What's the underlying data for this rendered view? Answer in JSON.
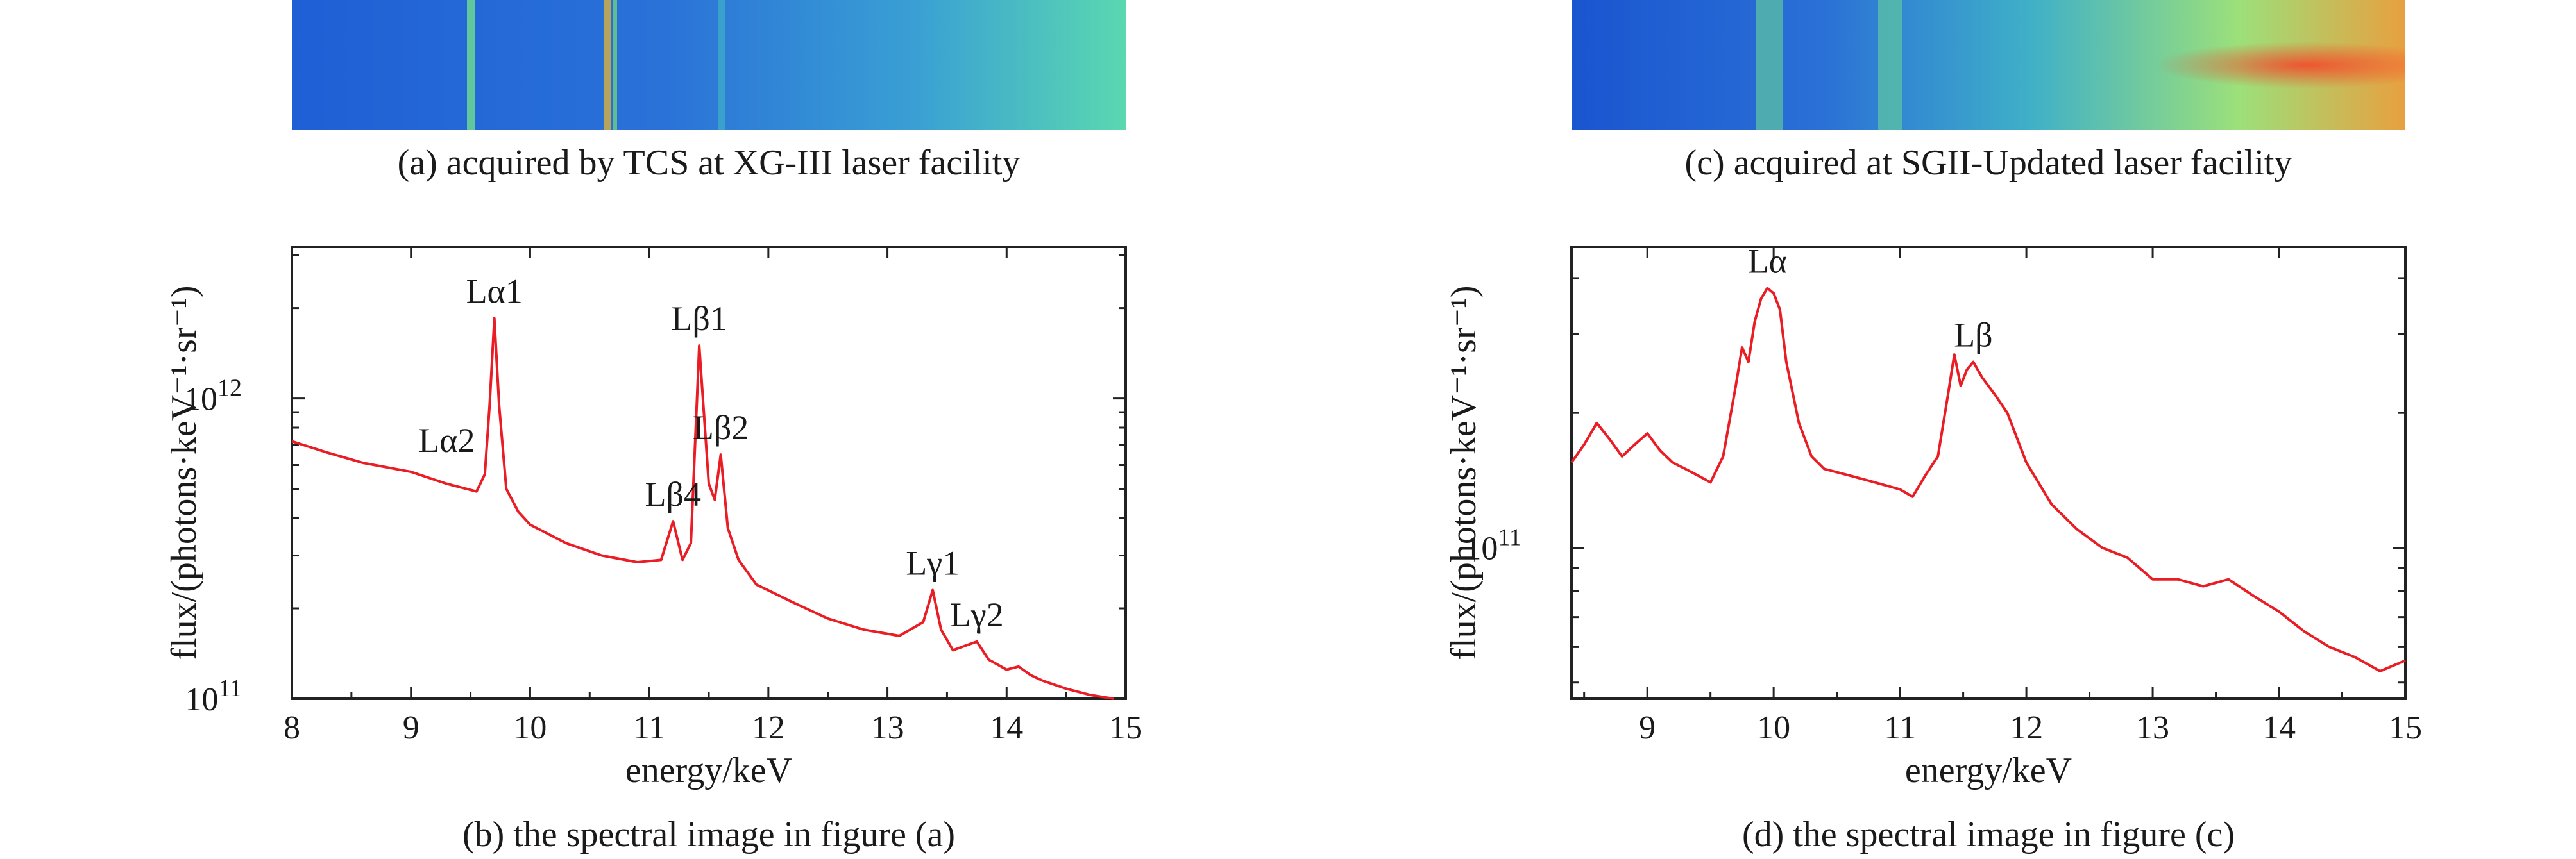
{
  "captions": {
    "a": "(a) acquired by TCS at XG-III laser facility",
    "c": "(c) acquired at SGII-Updated laser facility",
    "b": "(b) the spectral image in figure (a)",
    "d": "(d) the spectral image in figure (c)"
  },
  "chart_data": [
    {
      "id": "b",
      "type": "line",
      "xlabel": "energy/keV",
      "ylabel": "flux/(photons·keV⁻¹·sr⁻¹)",
      "xlim": [
        8,
        15
      ],
      "ylim": [
        100000000000.0,
        3200000000000.0
      ],
      "yscale": "log",
      "x_ticks": [
        "8",
        "9",
        "10",
        "11",
        "12",
        "13",
        "14",
        "15"
      ],
      "y_ticks": [
        {
          "base": "10",
          "exp": "11"
        },
        {
          "base": "10",
          "exp": "12"
        }
      ],
      "color": "#ea1c24",
      "annotations": [
        {
          "label": "Lα2",
          "x": 9.3,
          "y": 590000000000.0
        },
        {
          "label": "Lα1",
          "x": 9.7,
          "y": 1850000000000.0
        },
        {
          "label": "Lβ4",
          "x": 11.2,
          "y": 390000000000.0
        },
        {
          "label": "Lβ1",
          "x": 11.42,
          "y": 1500000000000.0
        },
        {
          "label": "Lβ2",
          "x": 11.6,
          "y": 650000000000.0
        },
        {
          "label": "Lγ1",
          "x": 13.38,
          "y": 230000000000.0
        },
        {
          "label": "Lγ2",
          "x": 13.75,
          "y": 155000000000.0
        }
      ],
      "series": [
        {
          "x": [
            8,
            8.3,
            8.6,
            9,
            9.3,
            9.55,
            9.62,
            9.66,
            9.7,
            9.74,
            9.8,
            9.9,
            10,
            10.3,
            10.6,
            10.9,
            11.1,
            11.2,
            11.28,
            11.35,
            11.42,
            11.5,
            11.55,
            11.6,
            11.66,
            11.75,
            11.9,
            12.2,
            12.5,
            12.8,
            13.1,
            13.3,
            13.38,
            13.45,
            13.55,
            13.65,
            13.75,
            13.85,
            14,
            14.1,
            14.2,
            14.3,
            14.5,
            14.7,
            14.9
          ],
          "y": [
            720000000000.0,
            660000000000.0,
            610000000000.0,
            570000000000.0,
            520000000000.0,
            490000000000.0,
            560000000000.0,
            950000000000.0,
            1850000000000.0,
            950000000000.0,
            500000000000.0,
            420000000000.0,
            380000000000.0,
            330000000000.0,
            300000000000.0,
            285000000000.0,
            290000000000.0,
            390000000000.0,
            290000000000.0,
            330000000000.0,
            1500000000000.0,
            520000000000.0,
            460000000000.0,
            650000000000.0,
            370000000000.0,
            290000000000.0,
            240000000000.0,
            210000000000.0,
            185000000000.0,
            170000000000.0,
            162000000000.0,
            180000000000.0,
            230000000000.0,
            170000000000.0,
            145000000000.0,
            150000000000.0,
            155000000000.0,
            135000000000.0,
            125000000000.0,
            128000000000.0,
            120000000000.0,
            115000000000.0,
            108000000000.0,
            103000000000.0,
            100000000000.0
          ]
        }
      ]
    },
    {
      "id": "d",
      "type": "line",
      "xlabel": "energy/keV",
      "ylabel": "flux/(photons·keV⁻¹·sr⁻¹)",
      "xlim": [
        8.4,
        15
      ],
      "ylim": [
        46000000000.0,
        470000000000.0
      ],
      "yscale": "log",
      "x_ticks": [
        "9",
        "10",
        "11",
        "12",
        "13",
        "14",
        "15"
      ],
      "y_ticks": [
        {
          "base": "10",
          "exp": "11"
        }
      ],
      "color": "#ea1c24",
      "annotations": [
        {
          "label": "Lα",
          "x": 9.95,
          "y": 380000000000.0
        },
        {
          "label": "Lβ",
          "x": 11.58,
          "y": 260000000000.0
        }
      ],
      "series": [
        {
          "x": [
            8.4,
            8.5,
            8.6,
            8.7,
            8.8,
            8.9,
            9.0,
            9.1,
            9.2,
            9.3,
            9.4,
            9.5,
            9.6,
            9.7,
            9.75,
            9.8,
            9.85,
            9.9,
            9.95,
            10.0,
            10.05,
            10.1,
            10.2,
            10.3,
            10.4,
            10.6,
            10.8,
            11.0,
            11.1,
            11.2,
            11.3,
            11.38,
            11.43,
            11.48,
            11.53,
            11.58,
            11.65,
            11.75,
            11.85,
            12.0,
            12.2,
            12.4,
            12.6,
            12.8,
            13.0,
            13.2,
            13.4,
            13.6,
            13.8,
            14.0,
            14.2,
            14.4,
            14.6,
            14.8,
            15.0
          ],
          "y": [
            155000000000.0,
            170000000000.0,
            190000000000.0,
            175000000000.0,
            160000000000.0,
            170000000000.0,
            180000000000.0,
            165000000000.0,
            155000000000.0,
            150000000000.0,
            145000000000.0,
            140000000000.0,
            160000000000.0,
            230000000000.0,
            280000000000.0,
            260000000000.0,
            320000000000.0,
            360000000000.0,
            380000000000.0,
            370000000000.0,
            340000000000.0,
            260000000000.0,
            190000000000.0,
            160000000000.0,
            150000000000.0,
            145000000000.0,
            140000000000.0,
            135000000000.0,
            130000000000.0,
            145000000000.0,
            160000000000.0,
            220000000000.0,
            270000000000.0,
            230000000000.0,
            250000000000.0,
            260000000000.0,
            240000000000.0,
            220000000000.0,
            200000000000.0,
            155000000000.0,
            125000000000.0,
            110000000000.0,
            100000000000.0,
            95000000000.0,
            85000000000.0,
            85000000000.0,
            82000000000.0,
            85000000000.0,
            78000000000.0,
            72000000000.0,
            65000000000.0,
            60000000000.0,
            57000000000.0,
            53000000000.0,
            56000000000.0
          ]
        }
      ]
    }
  ]
}
